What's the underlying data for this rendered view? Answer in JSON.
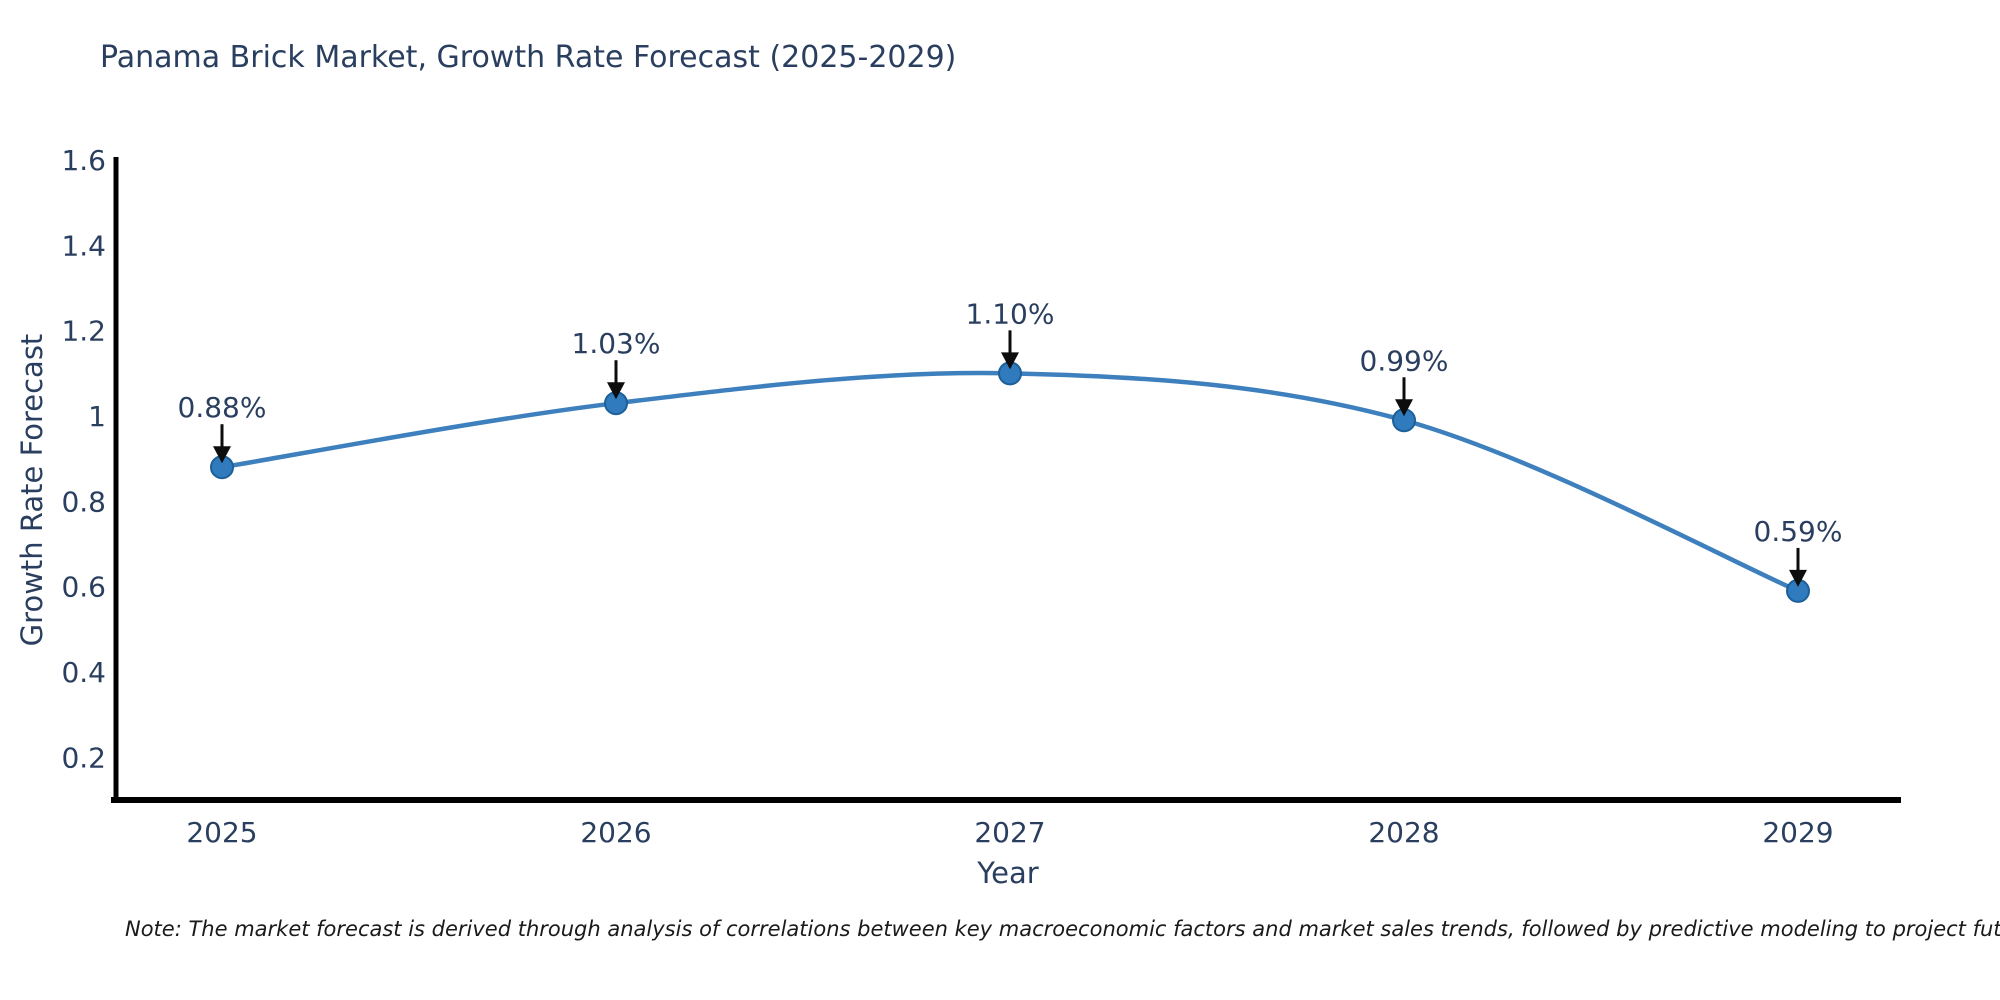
{
  "page": {
    "background": "#ffffff"
  },
  "header": {
    "title": "Panama Brick Market, Growth Rate Forecast (2025-2029)"
  },
  "footer": {
    "note": "Note: The market forecast is derived through analysis of correlations between key macroeconomic factors and market sales trends, followed by predictive modeling to project future sales"
  },
  "chart_data": {
    "type": "line",
    "title": "Panama Brick Market, Growth Rate Forecast (2025-2029)",
    "xlabel": "Year",
    "ylabel": "Growth Rate Forecast",
    "x": [
      2025,
      2026,
      2027,
      2028,
      2029
    ],
    "values": [
      0.88,
      1.03,
      1.1,
      0.99,
      0.59
    ],
    "point_labels": [
      "0.88%",
      "1.03%",
      "1.10%",
      "0.99%",
      "0.59%"
    ],
    "x_tick_labels": [
      "2025",
      "2026",
      "2027",
      "2028",
      "2029"
    ],
    "y_tick_labels": [
      "0.2",
      "0.4",
      "0.6",
      "0.8",
      "1",
      "1.2",
      "1.4",
      "1.6"
    ],
    "yticks": [
      0.2,
      0.4,
      0.6,
      0.8,
      1.0,
      1.2,
      1.4,
      1.6
    ],
    "ylim": [
      0.1,
      1.6
    ],
    "line_shape": "spline",
    "grid": false,
    "legend": "none",
    "annotations": "black downward arrows from each value label to its marker",
    "colors": {
      "line": "#3d80bd",
      "marker_fill": "#2f7bbd",
      "marker_edge": "#1d5f98",
      "arrow": "#0d0d0d",
      "axis_line": "#000000",
      "tick_text": "#2a3f5f",
      "label_text": "#2a3f5f",
      "note_text": "#1a1a1a"
    }
  }
}
